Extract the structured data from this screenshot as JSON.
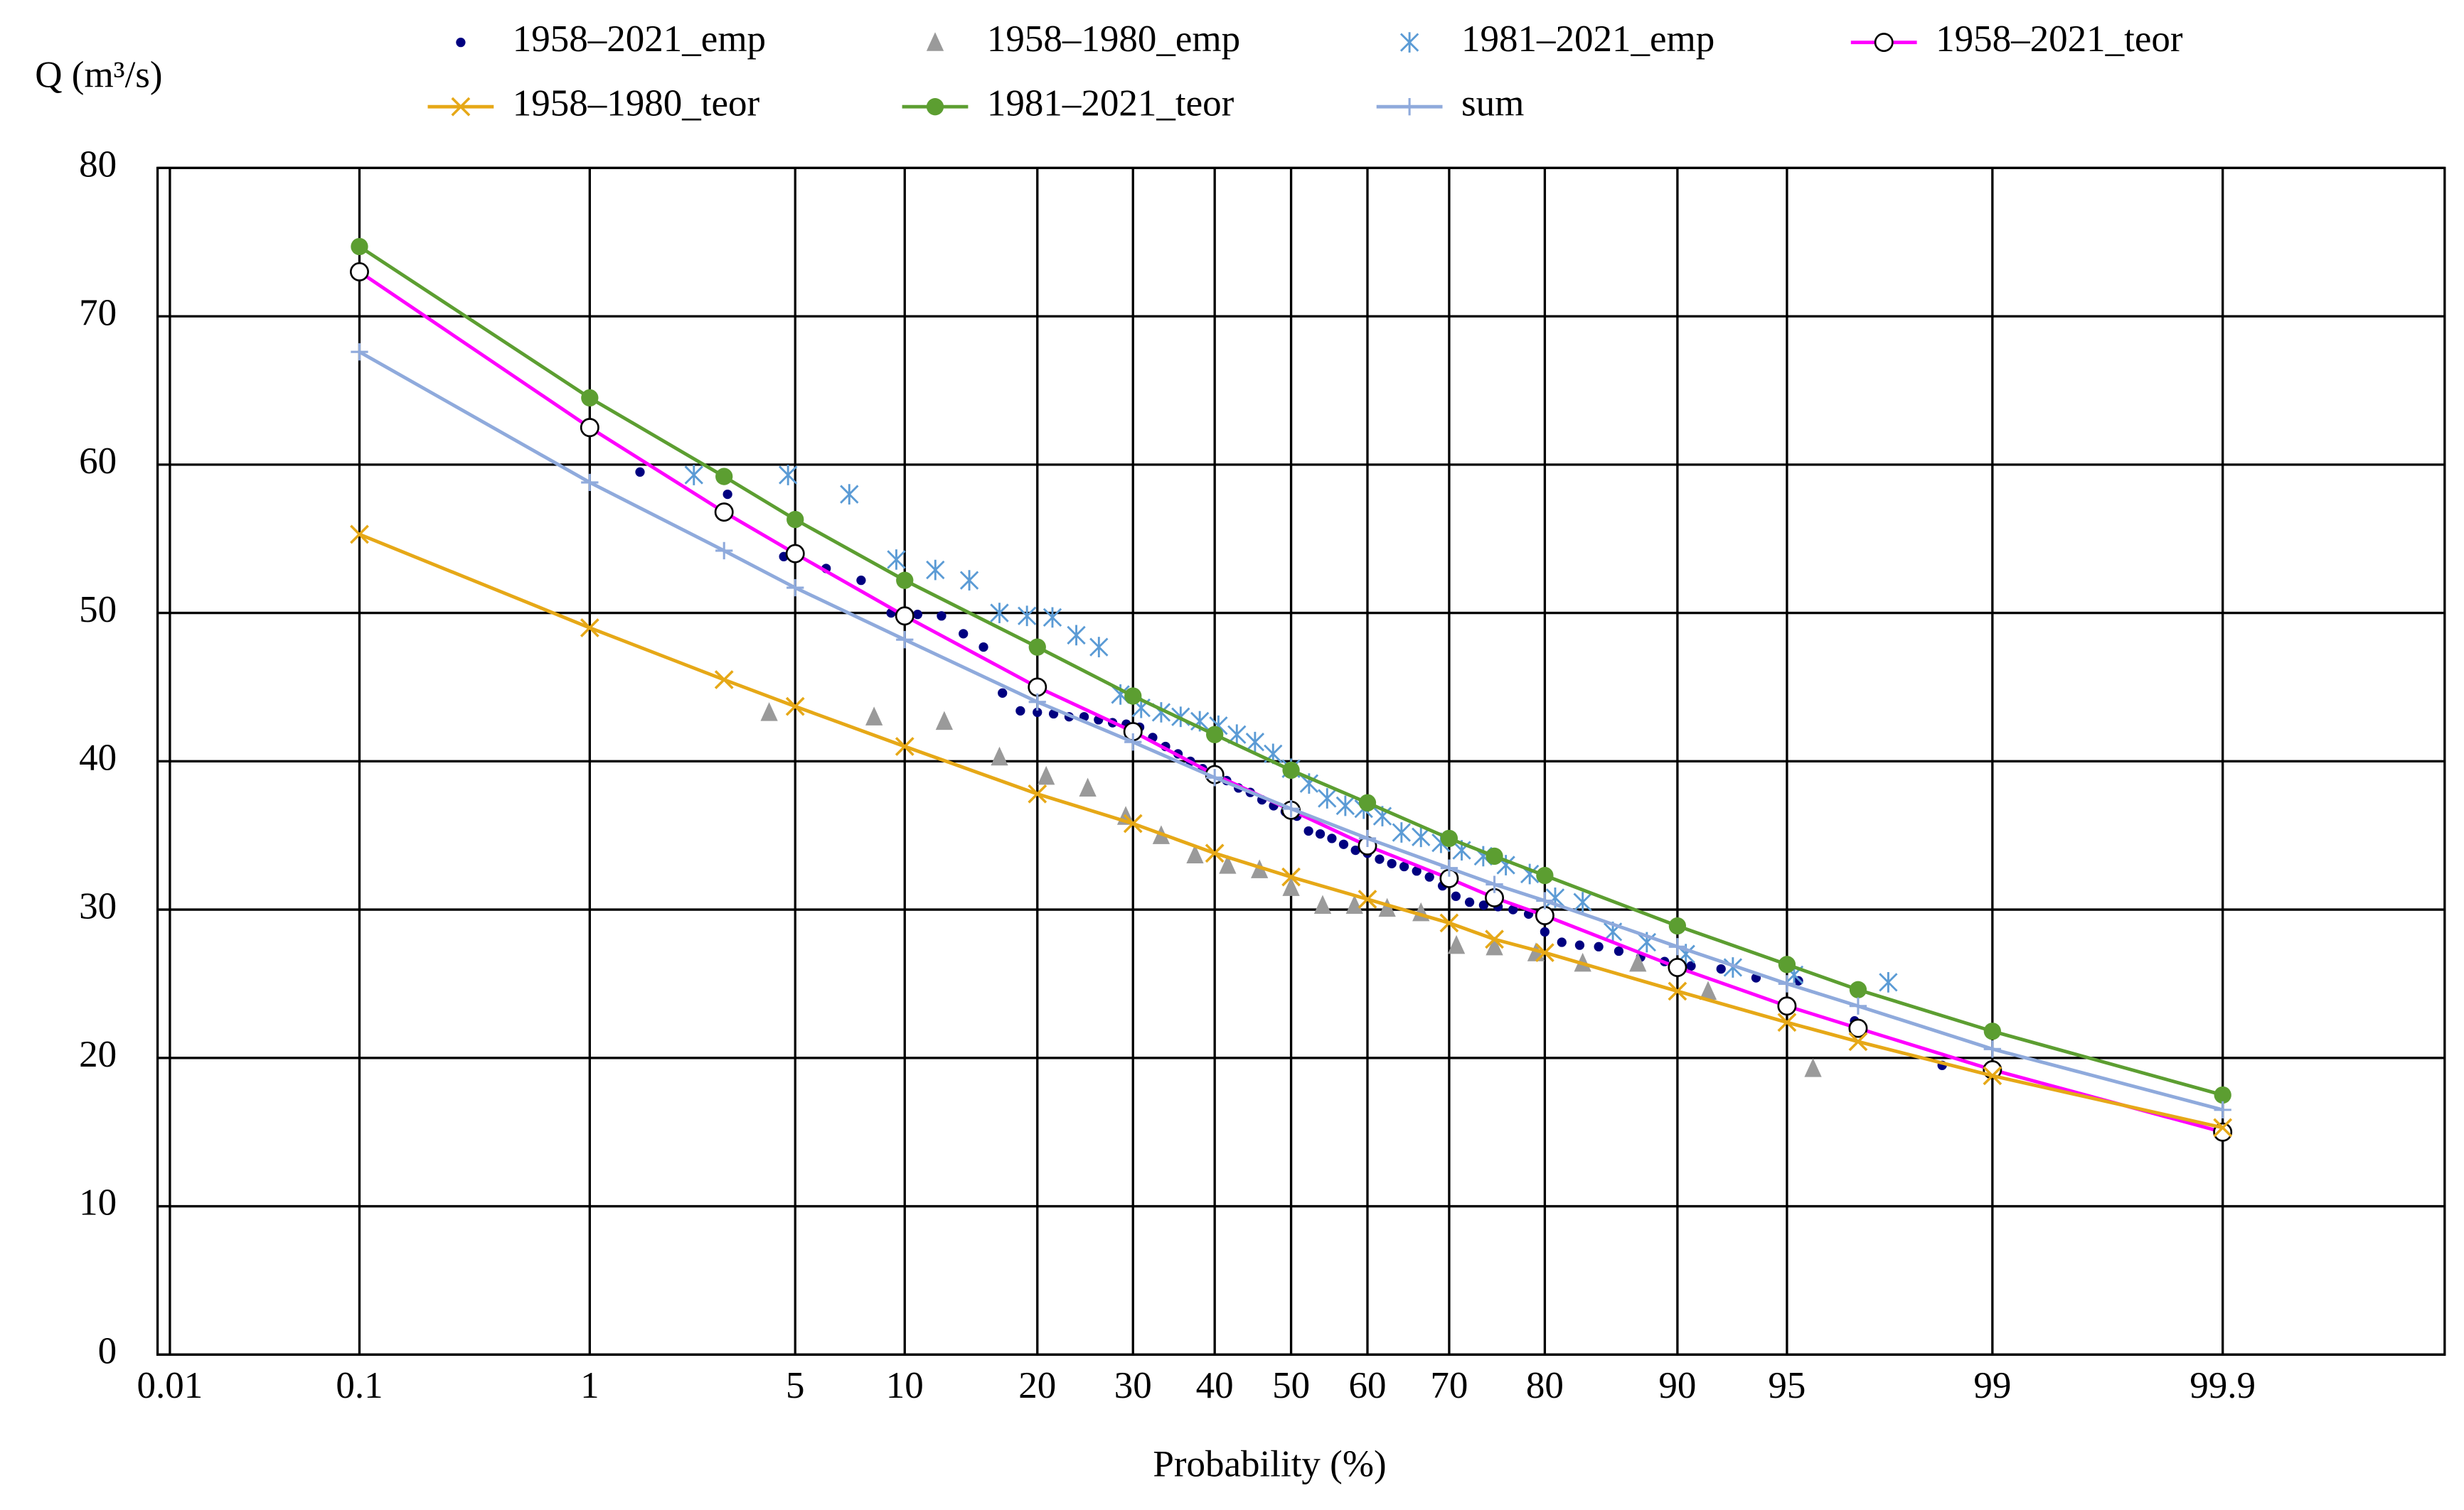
{
  "chart_data": {
    "type": "probability",
    "xscale": "probability",
    "grid": true,
    "xlabel": "Probability (%)",
    "ylabel": "Q (m³/s)",
    "xlim": [
      0.0085,
      99.9935
    ],
    "xticks": [
      0.01,
      0.1,
      1,
      5,
      10,
      20,
      30,
      40,
      50,
      60,
      70,
      80,
      90,
      95,
      99,
      99.9
    ],
    "ylim": [
      0,
      80
    ],
    "yticks": [
      0,
      10,
      20,
      30,
      40,
      50,
      60,
      70,
      80
    ],
    "series": [
      {
        "name": "1958–2021_emp",
        "color": "#000080",
        "marker": "dot",
        "line": false,
        "x": [
          1.54,
          3.08,
          4.62,
          6.15,
          7.69,
          9.23,
          10.77,
          12.31,
          13.85,
          15.38,
          16.92,
          18.46,
          20,
          21.54,
          23.08,
          24.62,
          26.15,
          27.69,
          29.23,
          30.77,
          32.31,
          33.85,
          35.38,
          36.92,
          38.46,
          40,
          41.54,
          43.08,
          44.62,
          46.15,
          47.69,
          49.23,
          50.77,
          52.31,
          53.85,
          55.38,
          56.92,
          58.46,
          60,
          61.54,
          63.08,
          64.62,
          66.15,
          67.69,
          69.23,
          70.77,
          72.31,
          73.85,
          75.38,
          76.92,
          78.46,
          80,
          81.54,
          83.08,
          84.62,
          86.15,
          87.69,
          89.23,
          90.77,
          92.31,
          93.85,
          95.38,
          96.92,
          98.46
        ],
        "values": [
          59.5,
          58,
          53.8,
          53,
          52.2,
          50,
          49.9,
          49.8,
          48.6,
          47.7,
          44.6,
          43.4,
          43.3,
          43.2,
          43,
          43,
          42.8,
          42.6,
          42.5,
          42.3,
          41.6,
          41,
          40.5,
          40,
          39.5,
          39,
          38.7,
          38.2,
          37.9,
          37.4,
          37,
          36.6,
          36.3,
          35.3,
          35.1,
          34.8,
          34.4,
          34,
          33.8,
          33.4,
          33.1,
          32.9,
          32.6,
          32.2,
          31.6,
          30.9,
          30.5,
          30.3,
          30.2,
          30,
          29.7,
          28.5,
          27.8,
          27.6,
          27.5,
          27.2,
          26.8,
          26.5,
          26.2,
          26,
          25.4,
          25.2,
          22.5,
          19.5
        ]
      },
      {
        "name": "1958–1980_emp",
        "color": "#9a9a9a",
        "marker": "triangle",
        "line": false,
        "x": [
          4.17,
          8.33,
          12.5,
          16.67,
          20.83,
          25,
          29.17,
          33.33,
          37.5,
          41.67,
          45.83,
          50,
          54.17,
          58.33,
          62.5,
          66.67,
          70.83,
          75,
          79.17,
          83.33,
          87.5,
          91.67,
          95.83
        ],
        "values": [
          43.3,
          43,
          42.7,
          40.3,
          39,
          38.2,
          36.3,
          35,
          33.7,
          33,
          32.7,
          31.5,
          30.3,
          30.3,
          30.1,
          29.8,
          27.6,
          27.5,
          27.1,
          26.4,
          26.4,
          24.5,
          19.3
        ]
      },
      {
        "name": "1981–2021_emp",
        "color": "#5b9bd5",
        "marker": "asterisk",
        "line": false,
        "x": [
          2.38,
          4.76,
          7.14,
          9.52,
          11.9,
          14.29,
          16.67,
          19.05,
          21.43,
          23.81,
          26.19,
          28.57,
          30.95,
          33.33,
          35.71,
          38.1,
          40.48,
          42.86,
          45.24,
          47.62,
          50,
          52.38,
          54.76,
          57.14,
          59.52,
          61.9,
          64.29,
          66.67,
          69.05,
          71.43,
          73.81,
          76.19,
          78.57,
          80.95,
          83.33,
          85.71,
          88.1,
          90.48,
          92.86,
          95.24,
          97.62
        ],
        "values": [
          59.3,
          59.3,
          58,
          53.6,
          52.9,
          52.2,
          50,
          49.8,
          49.7,
          48.5,
          47.7,
          44.5,
          43.6,
          43.3,
          43,
          42.7,
          42.4,
          41.8,
          41.3,
          40.5,
          39.5,
          38.5,
          37.5,
          37,
          36.8,
          36.3,
          35.2,
          34.9,
          34.5,
          34,
          33.6,
          33,
          32.4,
          30.8,
          30.5,
          28.5,
          27.8,
          27,
          26.1,
          25.6,
          25.1
        ]
      },
      {
        "name": "1958–2021_teor",
        "color": "#ff00ff",
        "marker": "circle",
        "line": true,
        "x": [
          0.1,
          1,
          3,
          5,
          10,
          20,
          30,
          40,
          50,
          60,
          70,
          75,
          80,
          90,
          95,
          97,
          99,
          99.9
        ],
        "values": [
          73,
          62.5,
          56.8,
          54,
          49.8,
          45,
          42,
          39.1,
          36.7,
          34.3,
          32.1,
          30.8,
          29.6,
          26.1,
          23.5,
          22,
          19.2,
          15
        ]
      },
      {
        "name": "1958–1980_teor",
        "color": "#e6a817",
        "marker": "x",
        "line": true,
        "x": [
          0.1,
          1,
          3,
          5,
          10,
          20,
          30,
          40,
          50,
          60,
          70,
          75,
          80,
          90,
          95,
          97,
          99,
          99.9
        ],
        "values": [
          55.3,
          49,
          45.5,
          43.7,
          41,
          37.8,
          35.8,
          33.8,
          32.2,
          30.7,
          29.1,
          28,
          27.1,
          24.5,
          22.4,
          21.1,
          18.8,
          15.3
        ]
      },
      {
        "name": "1981–2021_teor",
        "color": "#5c9e31",
        "marker": "filled-circle",
        "line": true,
        "x": [
          0.1,
          1,
          3,
          5,
          10,
          20,
          30,
          40,
          50,
          60,
          70,
          75,
          80,
          90,
          95,
          97,
          99,
          99.9
        ],
        "values": [
          74.7,
          64.5,
          59.2,
          56.3,
          52.2,
          47.7,
          44.4,
          41.8,
          39.4,
          37.2,
          34.8,
          33.6,
          32.3,
          28.9,
          26.3,
          24.6,
          21.8,
          17.5
        ]
      },
      {
        "name": "sum",
        "color": "#8faadc",
        "marker": "plus",
        "line": true,
        "x": [
          0.1,
          1,
          3,
          5,
          10,
          20,
          30,
          40,
          50,
          60,
          70,
          75,
          80,
          90,
          95,
          97,
          99,
          99.9
        ],
        "values": [
          67.6,
          58.8,
          54.2,
          51.7,
          48.2,
          44,
          41.3,
          38.9,
          36.8,
          34.8,
          32.8,
          31.7,
          30.6,
          27.5,
          25,
          23.5,
          20.6,
          16.5
        ]
      }
    ]
  }
}
